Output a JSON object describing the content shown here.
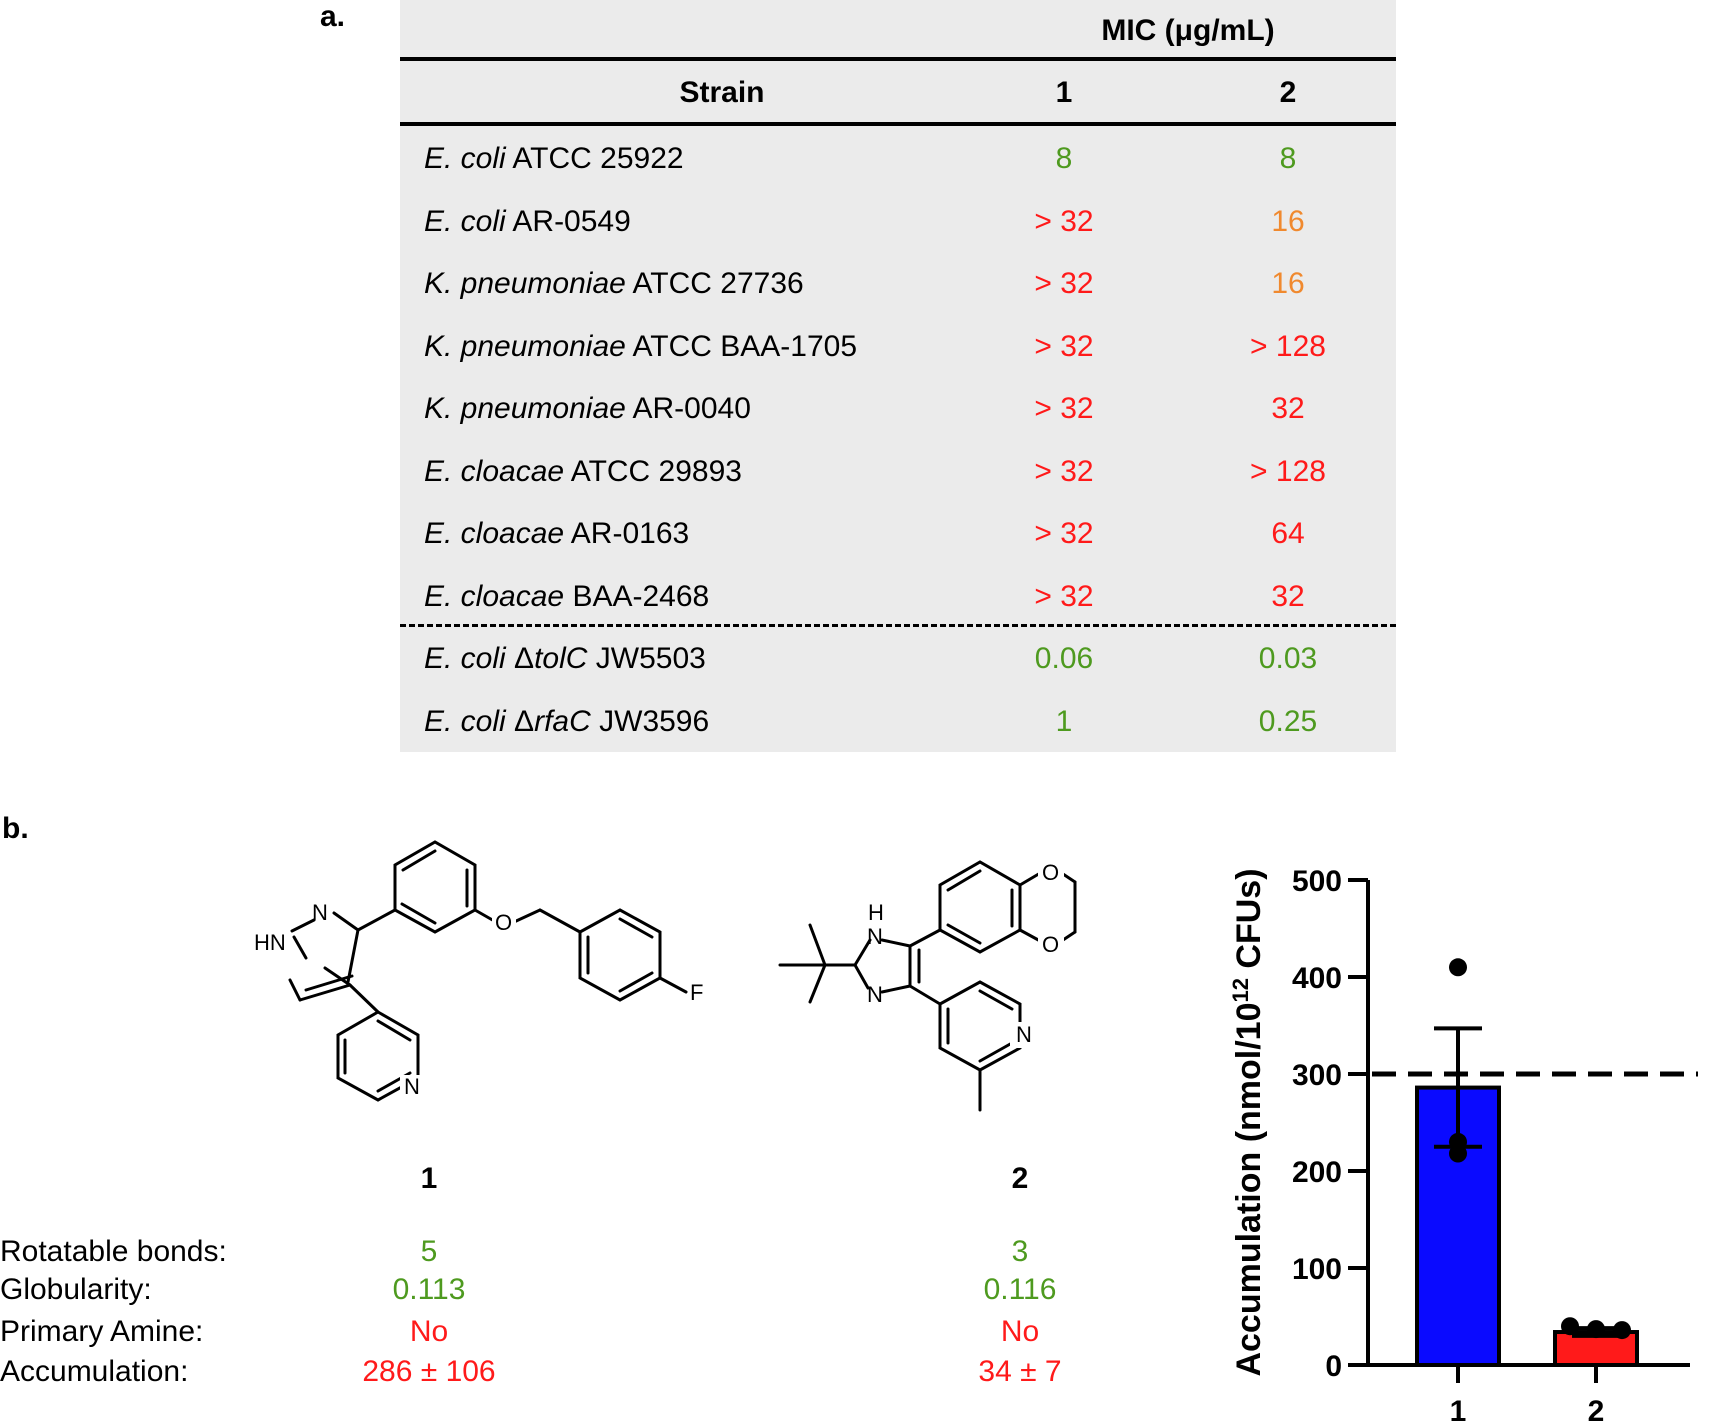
{
  "panel_a": {
    "label": "a.",
    "table": {
      "group_header": "MIC (μg/mL)",
      "columns": [
        "Strain",
        "1",
        "2"
      ],
      "rows": [
        {
          "species": "E. coli",
          "strain": "ATCC 25922",
          "v1": "8",
          "v2": "8",
          "c1": "green",
          "c2": "green"
        },
        {
          "species": "E. coli",
          "strain": "AR-0549",
          "v1": "> 32",
          "v2": "16",
          "c1": "red",
          "c2": "orange"
        },
        {
          "species": "K. pneumoniae",
          "strain": "ATCC 27736",
          "v1": "> 32",
          "v2": "16",
          "c1": "red",
          "c2": "orange"
        },
        {
          "species": "K. pneumoniae",
          "strain": "ATCC BAA-1705",
          "v1": "> 32",
          "v2": "> 128",
          "c1": "red",
          "c2": "red"
        },
        {
          "species": "K. pneumoniae",
          "strain": "AR-0040",
          "v1": "> 32",
          "v2": "32",
          "c1": "red",
          "c2": "red"
        },
        {
          "species": "E. cloacae",
          "strain": "ATCC 29893",
          "v1": "> 32",
          "v2": "> 128",
          "c1": "red",
          "c2": "red"
        },
        {
          "species": "E. cloacae",
          "strain": "AR-0163",
          "v1": "> 32",
          "v2": "64",
          "c1": "red",
          "c2": "red"
        },
        {
          "species": "E. cloacae",
          "strain": "BAA-2468",
          "v1": "> 32",
          "v2": "32",
          "c1": "red",
          "c2": "red"
        },
        {
          "species": "E. coli",
          "strain": "JW5503",
          "delta_prefix": "Δ",
          "gene": "tolC",
          "v1": "0.06",
          "v2": "0.03",
          "c1": "green",
          "c2": "green"
        },
        {
          "species": "E. coli",
          "strain": "JW3596",
          "delta_prefix": "Δ",
          "gene": "rfaC",
          "v1": "1",
          "v2": "0.25",
          "c1": "green",
          "c2": "green"
        }
      ]
    }
  },
  "panel_b": {
    "label": "b.",
    "compounds": [
      {
        "id": "1",
        "atoms": {
          "n1": "N",
          "hn": "HN",
          "o": "O",
          "f": "F",
          "n_pyr": "N"
        }
      },
      {
        "id": "2",
        "atoms": {
          "h": "H",
          "n1": "N",
          "n2": "N",
          "o1": "O",
          "o2": "O",
          "n_pyr": "N"
        }
      }
    ],
    "properties": {
      "labels": [
        "Rotatable bonds:",
        "Globularity:",
        "Primary Amine:",
        "Accumulation:"
      ],
      "compound_1": [
        "5",
        "0.113",
        "No",
        "286 ± 106"
      ],
      "compound_2": [
        "3",
        "0.116",
        "No",
        "34 ± 7"
      ],
      "colors": [
        "green",
        "green",
        "red",
        "red"
      ]
    },
    "colors": {
      "green": "#4e9a1f",
      "red": "#ff1a1a",
      "orange": "#f0892e",
      "bar1": "#0a0aff",
      "bar2": "#ff1a1a"
    }
  },
  "chart_data": {
    "type": "bar",
    "categories": [
      "1",
      "2"
    ],
    "values": [
      286,
      34
    ],
    "error": [
      61,
      4
    ],
    "points": [
      [
        410,
        230,
        218
      ],
      [
        40,
        37,
        36
      ]
    ],
    "threshold": 300,
    "ylabel_prefix": "Accumulation (nmol/10",
    "ylabel_sup": "12",
    "ylabel_suffix": " CFUs)",
    "yticks": [
      "0",
      "100",
      "200",
      "300",
      "400",
      "500"
    ],
    "ylim": [
      0,
      500
    ],
    "bar_colors": [
      "#0a0aff",
      "#ff1a1a"
    ]
  }
}
